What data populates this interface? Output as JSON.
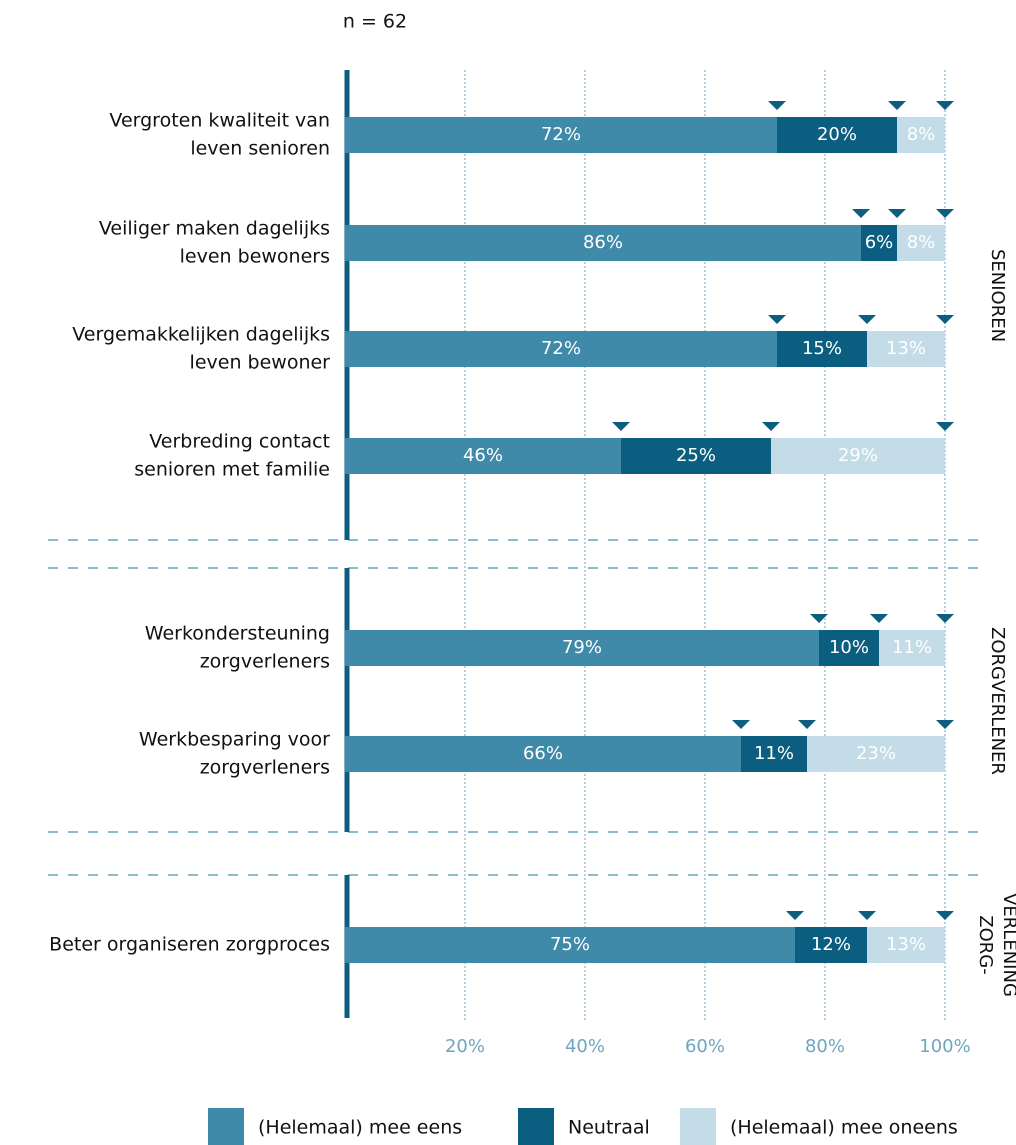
{
  "chart_data": {
    "type": "stacked-barh",
    "subtitle": "n = 62",
    "categories": [
      [
        "Vergroten kwaliteit van",
        "leven senioren"
      ],
      [
        "Veiliger maken dagelijks",
        "leven bewoners"
      ],
      [
        "Vergemakkelijken dagelijks",
        "leven bewoner"
      ],
      [
        "Verbreding contact",
        "senioren met familie"
      ],
      [
        "Werkondersteuning",
        "zorgverleners"
      ],
      [
        "Werkbesparing voor",
        "zorgverleners"
      ],
      [
        "Beter organiseren zorgproces"
      ]
    ],
    "groups": [
      {
        "name": [
          "SENIOREN"
        ],
        "size": 4
      },
      {
        "name": [
          "ZORGVERLENER"
        ],
        "size": 2
      },
      {
        "name": [
          "ZORG-",
          "VERLENING"
        ],
        "size": 1
      }
    ],
    "series": [
      {
        "name": "(Helemaal) mee eens",
        "color": "#3f8aa8",
        "values": [
          72,
          86,
          72,
          46,
          79,
          66,
          75
        ],
        "value_labels": [
          "72%",
          "86%",
          "72%",
          "46%",
          "79%",
          "66%",
          "75%"
        ]
      },
      {
        "name": "Neutraal",
        "color": "#0b5e80",
        "values": [
          20,
          6,
          15,
          25,
          10,
          11,
          12
        ],
        "value_labels": [
          "20%",
          "6%",
          "15%",
          "25%",
          "10%",
          "11%",
          "12%"
        ]
      },
      {
        "name": "(Helemaal) mee oneens",
        "color": "#c4dce7",
        "values": [
          8,
          8,
          13,
          29,
          11,
          23,
          13
        ],
        "value_labels": [
          "8%",
          "8%",
          "13%",
          "29%",
          "11%",
          "23%",
          "13%"
        ]
      }
    ],
    "xlim": [
      0,
      100
    ],
    "xticks": [
      {
        "value": 20,
        "label": "20%"
      },
      {
        "value": 40,
        "label": "40%"
      },
      {
        "value": 60,
        "label": "60%"
      },
      {
        "value": 80,
        "label": "80%"
      },
      {
        "value": 100,
        "label": "100%"
      }
    ],
    "grid": true
  }
}
